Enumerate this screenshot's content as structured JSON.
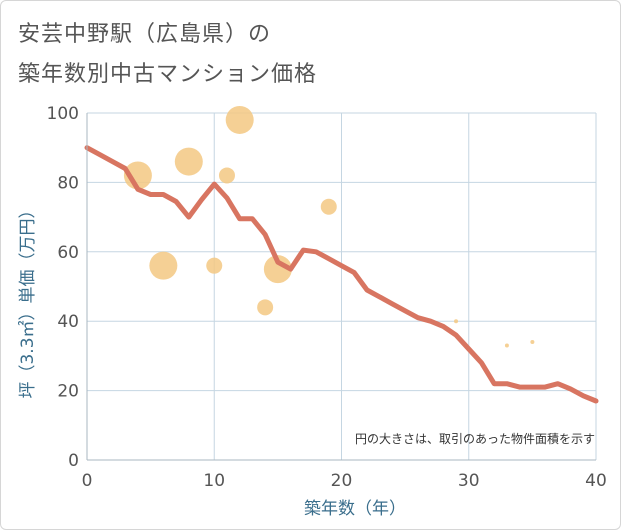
{
  "title": {
    "line1": "安芸中野駅（広島県）の",
    "line2": "築年数別中古マンション価格"
  },
  "colors": {
    "line": "#d87561",
    "bubble": "#f3c882",
    "grid": "#c5d6e2",
    "axis_text": "#3a6e8c"
  },
  "chart_data": {
    "type": "scatter",
    "xlabel": "築年数（年）",
    "ylabel": "坪（3.3㎡）単価（万円）",
    "xlim": [
      0,
      40
    ],
    "ylim": [
      0,
      100
    ],
    "xticks": [
      "0",
      "10",
      "20",
      "30",
      "40"
    ],
    "yticks": [
      "0",
      "20",
      "40",
      "60",
      "80",
      "100"
    ],
    "grid": true,
    "annotation": "円の大きさは、取引のあった物件面積を示す",
    "bubbles": [
      {
        "x": 4,
        "y": 82,
        "size": 14
      },
      {
        "x": 6,
        "y": 56,
        "size": 14
      },
      {
        "x": 8,
        "y": 86,
        "size": 14
      },
      {
        "x": 10,
        "y": 56,
        "size": 8
      },
      {
        "x": 11,
        "y": 82,
        "size": 8
      },
      {
        "x": 12,
        "y": 98,
        "size": 14
      },
      {
        "x": 14,
        "y": 44,
        "size": 8
      },
      {
        "x": 15,
        "y": 55,
        "size": 14
      },
      {
        "x": 19,
        "y": 73,
        "size": 8
      },
      {
        "x": 29,
        "y": 40,
        "size": 2
      },
      {
        "x": 33,
        "y": 33,
        "size": 2
      },
      {
        "x": 35,
        "y": 34,
        "size": 2
      }
    ],
    "line": {
      "x": [
        0,
        1,
        2,
        3,
        4,
        5,
        6,
        7,
        8,
        9,
        10,
        11,
        12,
        13,
        14,
        15,
        16,
        17,
        18,
        19,
        20,
        21,
        22,
        23,
        24,
        25,
        26,
        27,
        28,
        29,
        30,
        31,
        32,
        33,
        34,
        35,
        36,
        37,
        38,
        39,
        40
      ],
      "y": [
        90,
        88,
        86,
        84,
        78,
        76.5,
        76.5,
        74.5,
        70,
        75,
        79.5,
        75.5,
        69.5,
        69.5,
        65,
        57,
        55,
        60.5,
        60,
        58,
        56,
        54,
        49,
        47,
        45,
        43,
        41,
        40,
        38.5,
        36,
        32,
        28,
        22,
        22,
        21,
        21,
        21,
        22,
        20.5,
        18.5,
        17
      ]
    }
  }
}
